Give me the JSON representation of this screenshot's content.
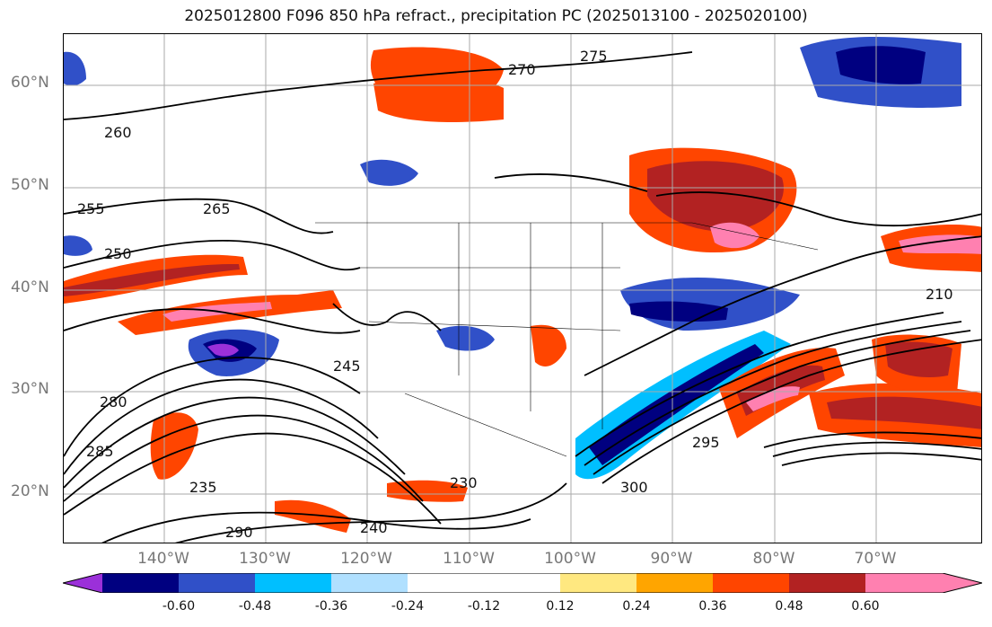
{
  "title": "2025012800 F096 850 hPa refract., precipitation PC (2025013100 - 2025020100)",
  "map": {
    "lat_labels": [
      "60°N",
      "50°N",
      "40°N",
      "30°N",
      "20°N"
    ],
    "lon_labels": [
      "140°W",
      "130°W",
      "120°W",
      "110°W",
      "100°W",
      "90°W",
      "80°W",
      "70°W"
    ],
    "contour_labels": [
      "275",
      "270",
      "265",
      "260",
      "255",
      "250",
      "245",
      "240",
      "235",
      "230",
      "285",
      "280",
      "290",
      "295",
      "300",
      "210"
    ]
  },
  "colorbar": {
    "ticks": [
      "-0.60",
      "-0.48",
      "-0.36",
      "-0.24",
      "-0.12",
      "0.12",
      "0.24",
      "0.36",
      "0.48",
      "0.60"
    ],
    "colors": [
      "#9b30d9",
      "#000080",
      "#3050c8",
      "#00bfff",
      "#b0e0ff",
      "#ffffff",
      "#ffe880",
      "#ffa500",
      "#ff4500",
      "#b22222",
      "#ff80b0"
    ]
  }
}
